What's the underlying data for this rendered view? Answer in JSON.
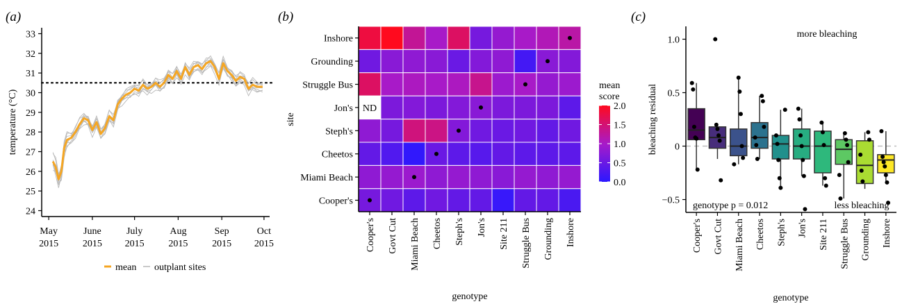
{
  "panels": {
    "a": {
      "label": "(a)",
      "chart_data": {
        "type": "line",
        "ylabel": "temperature (°C)",
        "xlabel": "",
        "ylim": [
          23.7,
          33.3
        ],
        "yticks": [
          24,
          25,
          26,
          27,
          28,
          29,
          30,
          31,
          32,
          33
        ],
        "x_tick_dates": [
          "2015-05-01",
          "2015-06-01",
          "2015-07-01",
          "2015-08-01",
          "2015-09-01",
          "2015-10-01"
        ],
        "x_tick_labels": [
          [
            "May",
            "2015"
          ],
          [
            "June",
            "2015"
          ],
          [
            "July",
            "2015"
          ],
          [
            "Aug",
            "2015"
          ],
          [
            "Sep",
            "2015"
          ],
          [
            "Oct",
            "2015"
          ]
        ],
        "x_range": [
          "2015-04-26",
          "2015-10-05"
        ],
        "threshold": 30.5,
        "mean_color": "#F5A623",
        "site_color": "#b8b8b8",
        "series": [
          {
            "name": "mean",
            "points": [
              [
                "2015-05-04",
                26.5
              ],
              [
                "2015-05-06",
                26.2
              ],
              [
                "2015-05-08",
                25.6
              ],
              [
                "2015-05-10",
                26.0
              ],
              [
                "2015-05-12",
                27.2
              ],
              [
                "2015-05-14",
                27.6
              ],
              [
                "2015-05-17",
                27.7
              ],
              [
                "2015-05-20",
                28.0
              ],
              [
                "2015-05-23",
                28.4
              ],
              [
                "2015-05-26",
                28.7
              ],
              [
                "2015-05-29",
                28.6
              ],
              [
                "2015-06-01",
                28.1
              ],
              [
                "2015-06-04",
                28.5
              ],
              [
                "2015-06-07",
                27.9
              ],
              [
                "2015-06-10",
                28.2
              ],
              [
                "2015-06-13",
                28.8
              ],
              [
                "2015-06-16",
                28.6
              ],
              [
                "2015-06-19",
                29.4
              ],
              [
                "2015-06-22",
                29.7
              ],
              [
                "2015-06-25",
                29.9
              ],
              [
                "2015-06-28",
                30.0
              ],
              [
                "2015-07-01",
                30.2
              ],
              [
                "2015-07-04",
                30.1
              ],
              [
                "2015-07-07",
                30.4
              ],
              [
                "2015-07-10",
                30.2
              ],
              [
                "2015-07-13",
                30.3
              ],
              [
                "2015-07-16",
                30.5
              ],
              [
                "2015-07-19",
                30.3
              ],
              [
                "2015-07-22",
                30.5
              ],
              [
                "2015-07-25",
                30.9
              ],
              [
                "2015-07-28",
                30.7
              ],
              [
                "2015-07-31",
                31.1
              ],
              [
                "2015-08-03",
                30.7
              ],
              [
                "2015-08-06",
                31.3
              ],
              [
                "2015-08-09",
                30.9
              ],
              [
                "2015-08-12",
                31.3
              ],
              [
                "2015-08-15",
                31.4
              ],
              [
                "2015-08-18",
                31.2
              ],
              [
                "2015-08-21",
                31.5
              ],
              [
                "2015-08-24",
                31.6
              ],
              [
                "2015-08-27",
                31.3
              ],
              [
                "2015-08-30",
                30.7
              ],
              [
                "2015-09-02",
                31.5
              ],
              [
                "2015-09-05",
                31.1
              ],
              [
                "2015-09-08",
                30.9
              ],
              [
                "2015-09-11",
                30.6
              ],
              [
                "2015-09-14",
                30.8
              ],
              [
                "2015-09-17",
                30.7
              ],
              [
                "2015-09-20",
                30.2
              ],
              [
                "2015-09-23",
                30.4
              ],
              [
                "2015-09-26",
                30.3
              ],
              [
                "2015-09-30",
                30.3
              ]
            ]
          },
          {
            "name": "outplant sites",
            "offsets": [
              0.5,
              -0.45,
              0.3,
              -0.3,
              0.15,
              -0.55,
              0.4,
              -0.2
            ]
          }
        ],
        "legend": {
          "position": "bottom",
          "entries": [
            "mean",
            "outplant sites"
          ]
        }
      }
    },
    "b": {
      "label": "(b)",
      "chart_data": {
        "type": "heatmap",
        "xlabel": "genotype",
        "ylabel": "site",
        "x_categories": [
          "Cooper's",
          "Govt Cut",
          "Miami Beach",
          "Cheetos",
          "Steph's",
          "Jon's",
          "Site 211",
          "Struggle Bus",
          "Grounding",
          "Inshore"
        ],
        "y_categories": [
          "Inshore",
          "Grounding",
          "Struggle Bus",
          "Jon's",
          "Steph's",
          "Cheetos",
          "Miami Beach",
          "Cooper's"
        ],
        "values": [
          [
            1.8,
            2.0,
            1.3,
            1.0,
            1.6,
            0.6,
            0.85,
            1.0,
            1.1,
            1.2
          ],
          [
            0.55,
            0.75,
            0.8,
            0.75,
            0.5,
            0.7,
            0.8,
            0.2,
            0.75,
            0.7
          ],
          [
            1.6,
            1.0,
            1.05,
            1.0,
            1.05,
            1.35,
            0.9,
            1.0,
            0.85,
            0.9
          ],
          [
            null,
            0.65,
            0.7,
            0.65,
            0.7,
            0.75,
            0.65,
            0.65,
            0.65,
            0.4
          ],
          [
            0.8,
            0.6,
            1.45,
            1.4,
            0.7,
            0.55,
            0.5,
            0.55,
            0.45,
            0.55
          ],
          [
            0.45,
            0.3,
            0.05,
            0.5,
            0.4,
            0.35,
            0.45,
            0.4,
            0.4,
            0.4
          ],
          [
            0.8,
            0.85,
            0.9,
            0.8,
            0.85,
            0.8,
            0.75,
            0.85,
            0.8,
            0.85
          ],
          [
            0.6,
            0.55,
            0.4,
            0.55,
            0.45,
            0.45,
            0.1,
            0.45,
            0.45,
            0.25
          ]
        ],
        "na_label": "ND",
        "dots": [
          [
            "Inshore",
            "Inshore"
          ],
          [
            "Grounding",
            "Grounding"
          ],
          [
            "Struggle Bus",
            "Struggle Bus"
          ],
          [
            "Jon's",
            "Jon's"
          ],
          [
            "Steph's",
            "Steph's"
          ],
          [
            "Cheetos",
            "Cheetos"
          ],
          [
            "Miami Beach",
            "Miami Beach"
          ],
          [
            "Cooper's",
            "Cooper's"
          ]
        ],
        "legend": {
          "title": [
            "mean",
            "score"
          ],
          "ticks": [
            2.0,
            1.5,
            1.0,
            0.5,
            0.0
          ],
          "tick_labels": [
            "2.0",
            "1.5",
            "1.0",
            "0.5",
            "0.0"
          ],
          "range": [
            0,
            2
          ],
          "low_color": "#2b18ff",
          "mid_color": "#a81ac8",
          "high_color": "#ff0a1e",
          "position": "right"
        }
      }
    },
    "c": {
      "label": "(c)",
      "chart_data": {
        "type": "box",
        "xlabel": "genotype",
        "ylabel": "bleaching residual",
        "ylim": [
          -0.62,
          1.12
        ],
        "yticks": [
          -0.5,
          0,
          0.5,
          1.0
        ],
        "ytick_labels": [
          "−0.5",
          "0",
          "0.5",
          "1.0"
        ],
        "zero_line": true,
        "categories": [
          "Cooper's",
          "Govt Cut",
          "Miami Beach",
          "Cheetos",
          "Steph's",
          "Jon's",
          "Site 211",
          "Struggle Bus",
          "Grounding",
          "Inshore"
        ],
        "colors": [
          "#440154",
          "#472D7B",
          "#3B528B",
          "#2C728E",
          "#21908C",
          "#27AD81",
          "#2EB87C",
          "#5DC863",
          "#AADC32",
          "#FDE725"
        ],
        "boxes": [
          {
            "q1": 0.06,
            "median": 0.15,
            "q3": 0.35,
            "whisker_low": -0.22,
            "whisker_high": 0.59
          },
          {
            "q1": -0.02,
            "median": 0.08,
            "q3": 0.18,
            "whisker_low": -0.12,
            "whisker_high": 0.2
          },
          {
            "q1": -0.09,
            "median": 0.0,
            "q3": 0.16,
            "whisker_low": -0.17,
            "whisker_high": 0.64
          },
          {
            "q1": -0.02,
            "median": 0.08,
            "q3": 0.22,
            "whisker_low": -0.12,
            "whisker_high": 0.47
          },
          {
            "q1": -0.12,
            "median": 0.02,
            "q3": 0.1,
            "whisker_low": -0.39,
            "whisker_high": 0.34
          },
          {
            "q1": -0.12,
            "median": 0.0,
            "q3": 0.16,
            "whisker_low": -0.28,
            "whisker_high": 0.35
          },
          {
            "q1": -0.25,
            "median": 0.0,
            "q3": 0.14,
            "whisker_low": -0.37,
            "whisker_high": 0.22
          },
          {
            "q1": -0.17,
            "median": -0.03,
            "q3": 0.06,
            "whisker_low": -0.49,
            "whisker_high": 0.12
          },
          {
            "q1": -0.35,
            "median": -0.18,
            "q3": 0.05,
            "whisker_low": -0.4,
            "whisker_high": 0.13
          },
          {
            "q1": -0.25,
            "median": -0.13,
            "q3": -0.08,
            "whisker_low": -0.34,
            "whisker_high": 0.14
          }
        ],
        "points": [
          [
            0.59,
            0.53,
            0.18,
            0.08,
            0.07,
            -0.22
          ],
          [
            1.0,
            0.2,
            0.16,
            0.1,
            0.05,
            -0.32
          ],
          [
            0.64,
            0.51,
            0.3,
            0.0,
            -0.11,
            -0.17
          ],
          [
            0.47,
            0.42,
            0.18,
            0.08,
            0.01,
            -0.12
          ],
          [
            0.34,
            0.1,
            0.02,
            -0.13,
            -0.3,
            -0.39
          ],
          [
            0.35,
            0.25,
            0.1,
            0.0,
            -0.13,
            -0.28,
            -0.59
          ],
          [
            0.22,
            0.13,
            0.01,
            -0.3,
            -0.37
          ],
          [
            0.12,
            0.06,
            0.01,
            -0.15,
            -0.27,
            -0.49
          ],
          [
            0.13,
            0.06,
            -0.08,
            -0.23,
            -0.33
          ],
          [
            0.14,
            -0.1,
            -0.15,
            -0.19,
            -0.27,
            -0.34,
            -0.53
          ]
        ],
        "annotations": {
          "top_right": "more bleaching",
          "bottom_right": "less bleaching",
          "bottom_left": "genotype p = 0.012"
        }
      }
    }
  }
}
